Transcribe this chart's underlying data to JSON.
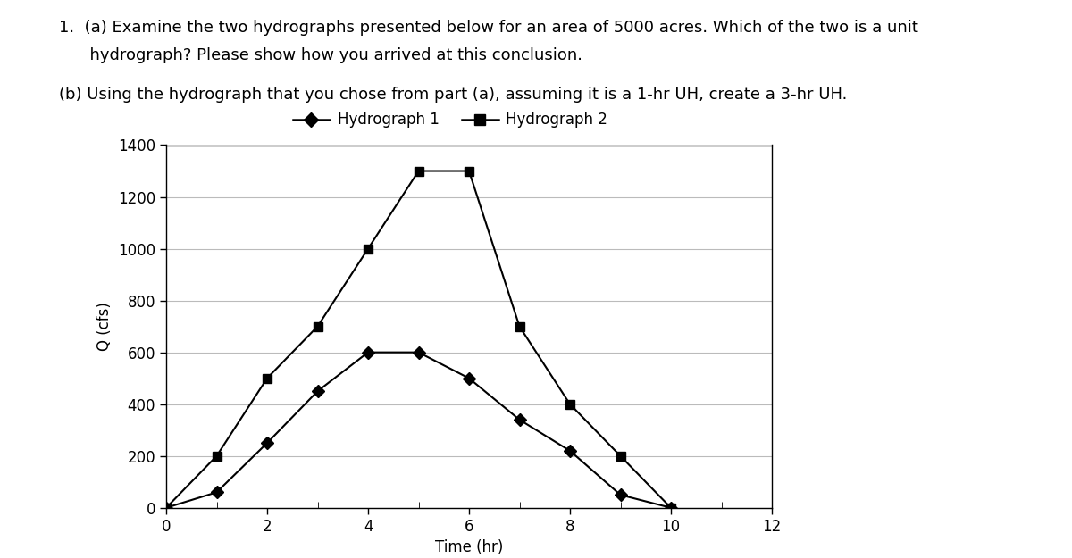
{
  "line1_text": "1.  (a) Examine the two hydrographs presented below for an area of 5000 acres. Which of the two is a unit",
  "line2_text": "      hydrograph? Please show how you arrived at this conclusion.",
  "line3_text": "(b) Using the hydrograph that you chose from part (a), assuming it is a 1-hr UH, create a 3-hr UH.",
  "hydrograph1_time": [
    0,
    1,
    2,
    3,
    4,
    5,
    6,
    7,
    8,
    9,
    10
  ],
  "hydrograph1_Q": [
    0,
    60,
    250,
    450,
    600,
    600,
    500,
    340,
    220,
    50,
    0
  ],
  "hydrograph2_time": [
    0,
    1,
    2,
    3,
    4,
    5,
    6,
    7,
    8,
    9,
    10
  ],
  "hydrograph2_Q": [
    0,
    200,
    500,
    700,
    1000,
    1300,
    1300,
    700,
    400,
    200,
    0
  ],
  "xlabel": "Time (hr)",
  "ylabel": "Q (cfs)",
  "xlim": [
    0,
    12
  ],
  "ylim": [
    0,
    1400
  ],
  "xticks": [
    0,
    2,
    4,
    6,
    8,
    10,
    12
  ],
  "yticks": [
    0,
    200,
    400,
    600,
    800,
    1000,
    1200,
    1400
  ],
  "legend1": "Hydrograph 1",
  "legend2": "Hydrograph 2",
  "line_color": "#000000",
  "bg_color": "#ffffff",
  "grid_color": "#bbbbbb",
  "text_fontsize": 13,
  "axis_fontsize": 12,
  "tick_fontsize": 12,
  "legend_fontsize": 12
}
